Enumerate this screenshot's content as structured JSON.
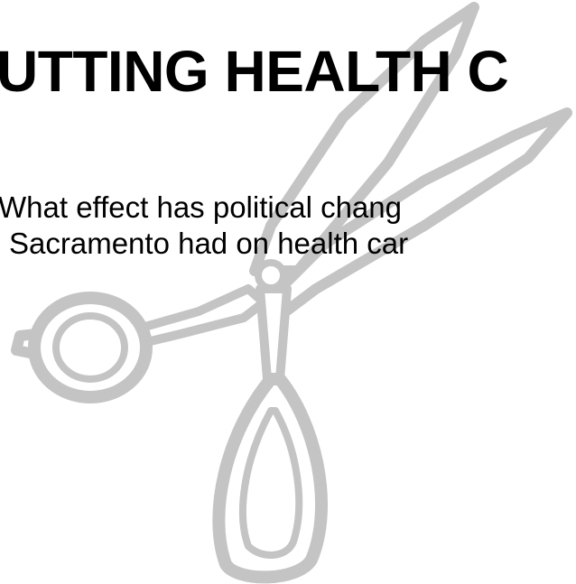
{
  "title": "UTTING HEALTH C",
  "body_lines": [
    "What effect has political chang",
    "Sacramento had on health car"
  ]
}
